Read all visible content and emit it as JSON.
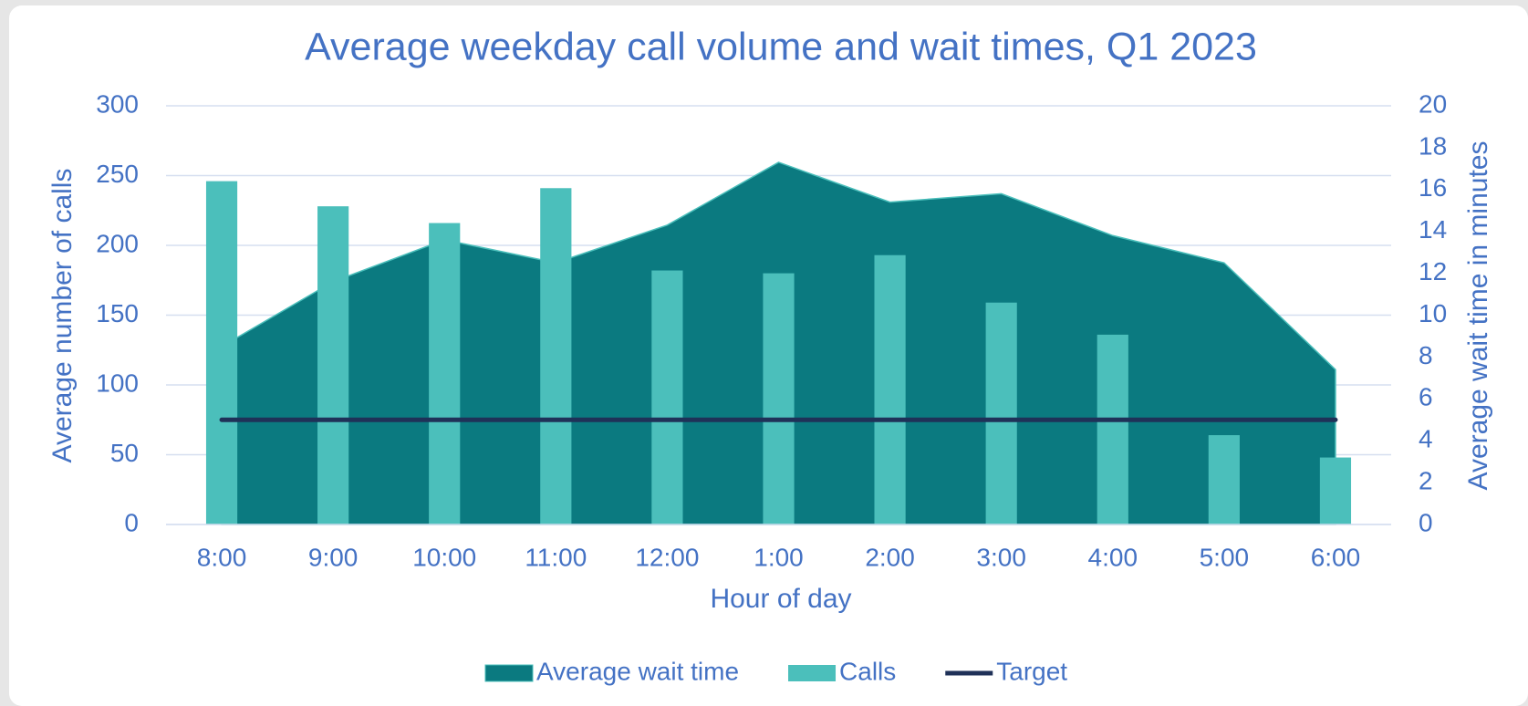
{
  "chart_data": {
    "type": "combo",
    "title": "Average weekday call volume and wait times, Q1 2023",
    "x_label": "Hour of day",
    "y_label": "Average number of calls",
    "y2_label": "Average wait time in minutes",
    "categories": [
      "8:00",
      "9:00",
      "10:00",
      "11:00",
      "12:00",
      "1:00",
      "2:00",
      "3:00",
      "4:00",
      "5:00",
      "6:00"
    ],
    "series": [
      {
        "name": "Average wait time",
        "type": "area",
        "axis": "y2",
        "color": "#0b7a80",
        "values": [
          8.5,
          11.6,
          13.6,
          12.5,
          14.3,
          17.3,
          15.4,
          15.8,
          13.8,
          12.5,
          7.4
        ]
      },
      {
        "name": "Calls",
        "type": "bar",
        "color": "#4bbfbb",
        "values": [
          246,
          228,
          216,
          241,
          182,
          180,
          193,
          159,
          136,
          64,
          48
        ]
      },
      {
        "name": "Target",
        "type": "line",
        "axis": "y2",
        "color": "#1f3158",
        "values": [
          5,
          5,
          5,
          5,
          5,
          5,
          5,
          5,
          5,
          5,
          5
        ]
      }
    ],
    "ylim": [
      0,
      300
    ],
    "yticks": [
      0,
      50,
      100,
      150,
      200,
      250,
      300
    ],
    "y2lim": [
      0,
      20
    ],
    "y2ticks": [
      0,
      2,
      4,
      6,
      8,
      10,
      12,
      14,
      16,
      18,
      20
    ],
    "grid": true,
    "legend": "bottom"
  }
}
